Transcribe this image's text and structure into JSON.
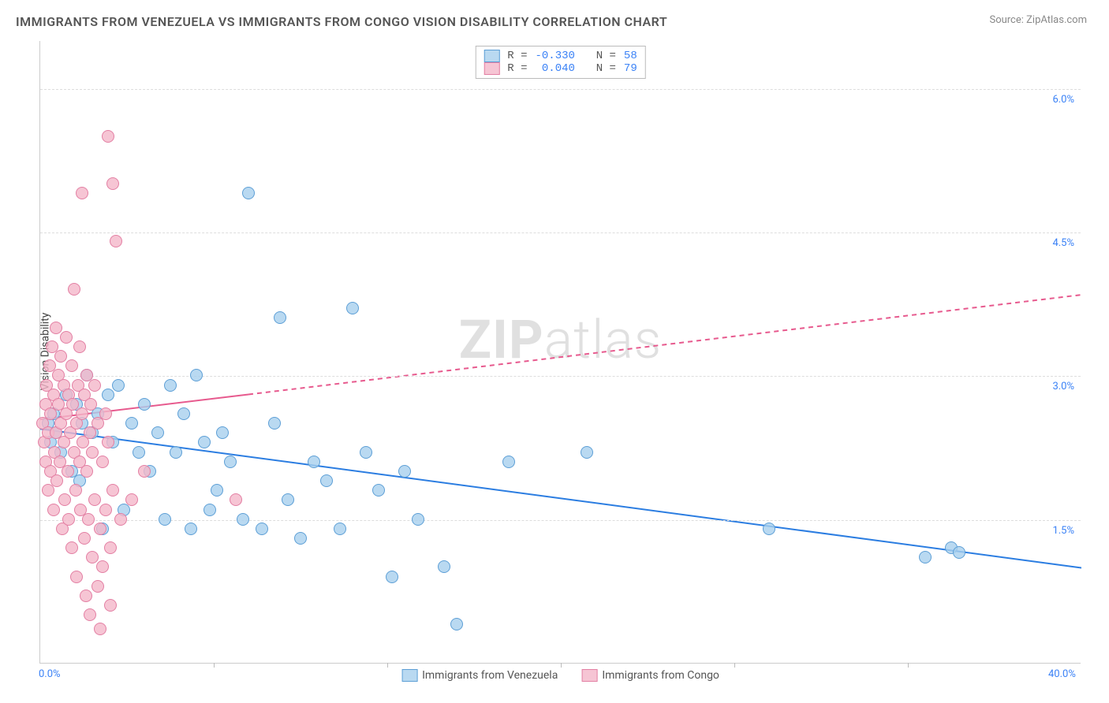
{
  "chart": {
    "type": "scatter",
    "title": "IMMIGRANTS FROM VENEZUELA VS IMMIGRANTS FROM CONGO VISION DISABILITY CORRELATION CHART",
    "source": "Source: ZipAtlas.com",
    "ylabel": "Vision Disability",
    "watermark_bold": "ZIP",
    "watermark_rest": "atlas",
    "background_color": "#ffffff",
    "grid_color": "#dddddd",
    "axis_color": "#cccccc",
    "title_color": "#555555",
    "title_fontsize": 16,
    "label_fontsize": 14,
    "tick_fontsize": 13,
    "tick_color": "#3b82f6",
    "x_axis": {
      "min": 0.0,
      "max": 40.0,
      "ticks": [
        0.0,
        40.0
      ],
      "tick_labels": [
        "0.0%",
        "40.0%"
      ],
      "minor_tick_positions": [
        6.67,
        13.33,
        20.0,
        26.67,
        33.33
      ]
    },
    "y_axis": {
      "min": 0.0,
      "max": 6.5,
      "gridlines": [
        1.5,
        3.0,
        4.5,
        6.0
      ],
      "gridline_labels": [
        "1.5%",
        "3.0%",
        "4.5%",
        "6.0%"
      ]
    },
    "series": [
      {
        "name": "Immigrants from Venezuela",
        "fill": "#a8cfeecc",
        "stroke": "#5d9fd6",
        "marker_radius": 8,
        "R_label": "R =",
        "R": "-0.330",
        "N_label": "N =",
        "N": "58",
        "trend": {
          "color": "#2b7de1",
          "width": 2,
          "dash": "none",
          "y_at_x0": 2.45,
          "y_at_x40": 1.0,
          "solid_until_x": 40
        },
        "points": [
          [
            0.3,
            2.5
          ],
          [
            0.4,
            2.3
          ],
          [
            0.5,
            2.6
          ],
          [
            0.6,
            2.4
          ],
          [
            0.8,
            2.2
          ],
          [
            1.0,
            2.8
          ],
          [
            1.2,
            2.0
          ],
          [
            1.4,
            2.7
          ],
          [
            1.5,
            1.9
          ],
          [
            1.6,
            2.5
          ],
          [
            1.8,
            3.0
          ],
          [
            2.0,
            2.4
          ],
          [
            2.2,
            2.6
          ],
          [
            2.4,
            1.4
          ],
          [
            2.6,
            2.8
          ],
          [
            2.8,
            2.3
          ],
          [
            3.0,
            2.9
          ],
          [
            3.2,
            1.6
          ],
          [
            3.5,
            2.5
          ],
          [
            3.8,
            2.2
          ],
          [
            4.0,
            2.7
          ],
          [
            4.2,
            2.0
          ],
          [
            4.5,
            2.4
          ],
          [
            4.8,
            1.5
          ],
          [
            5.0,
            2.9
          ],
          [
            5.2,
            2.2
          ],
          [
            5.5,
            2.6
          ],
          [
            5.8,
            1.4
          ],
          [
            6.0,
            3.0
          ],
          [
            6.3,
            2.3
          ],
          [
            6.5,
            1.6
          ],
          [
            6.8,
            1.8
          ],
          [
            7.0,
            2.4
          ],
          [
            7.3,
            2.1
          ],
          [
            7.8,
            1.5
          ],
          [
            8.0,
            4.9
          ],
          [
            8.5,
            1.4
          ],
          [
            9.0,
            2.5
          ],
          [
            9.2,
            3.6
          ],
          [
            9.5,
            1.7
          ],
          [
            10.0,
            1.3
          ],
          [
            10.5,
            2.1
          ],
          [
            11.0,
            1.9
          ],
          [
            11.5,
            1.4
          ],
          [
            12.0,
            3.7
          ],
          [
            12.5,
            2.2
          ],
          [
            13.0,
            1.8
          ],
          [
            13.5,
            0.9
          ],
          [
            14.0,
            2.0
          ],
          [
            14.5,
            1.5
          ],
          [
            15.5,
            1.0
          ],
          [
            16.0,
            0.4
          ],
          [
            18.0,
            2.1
          ],
          [
            21.0,
            2.2
          ],
          [
            28.0,
            1.4
          ],
          [
            34.0,
            1.1
          ],
          [
            35.0,
            1.2
          ],
          [
            35.3,
            1.15
          ]
        ]
      },
      {
        "name": "Immigrants from Congo",
        "fill": "#f4b6c9cc",
        "stroke": "#e37fa3",
        "marker_radius": 8,
        "R_label": "R =",
        "R": " 0.040",
        "N_label": "N =",
        "N": "79",
        "trend": {
          "color": "#e75a8e",
          "width": 2,
          "dash": "6 5",
          "y_at_x0": 2.55,
          "y_at_x40": 3.85,
          "solid_until_x": 8
        },
        "points": [
          [
            0.1,
            2.5
          ],
          [
            0.15,
            2.3
          ],
          [
            0.2,
            2.7
          ],
          [
            0.2,
            2.1
          ],
          [
            0.25,
            2.9
          ],
          [
            0.3,
            2.4
          ],
          [
            0.3,
            1.8
          ],
          [
            0.35,
            3.1
          ],
          [
            0.4,
            2.6
          ],
          [
            0.4,
            2.0
          ],
          [
            0.45,
            3.3
          ],
          [
            0.5,
            2.8
          ],
          [
            0.5,
            1.6
          ],
          [
            0.55,
            2.2
          ],
          [
            0.6,
            3.5
          ],
          [
            0.6,
            2.4
          ],
          [
            0.65,
            1.9
          ],
          [
            0.7,
            2.7
          ],
          [
            0.7,
            3.0
          ],
          [
            0.75,
            2.1
          ],
          [
            0.8,
            2.5
          ],
          [
            0.8,
            3.2
          ],
          [
            0.85,
            1.4
          ],
          [
            0.9,
            2.9
          ],
          [
            0.9,
            2.3
          ],
          [
            0.95,
            1.7
          ],
          [
            1.0,
            2.6
          ],
          [
            1.0,
            3.4
          ],
          [
            1.05,
            2.0
          ],
          [
            1.1,
            2.8
          ],
          [
            1.1,
            1.5
          ],
          [
            1.15,
            2.4
          ],
          [
            1.2,
            3.1
          ],
          [
            1.2,
            1.2
          ],
          [
            1.25,
            2.7
          ],
          [
            1.3,
            2.2
          ],
          [
            1.3,
            3.9
          ],
          [
            1.35,
            1.8
          ],
          [
            1.4,
            2.5
          ],
          [
            1.4,
            0.9
          ],
          [
            1.45,
            2.9
          ],
          [
            1.5,
            2.1
          ],
          [
            1.5,
            3.3
          ],
          [
            1.55,
            1.6
          ],
          [
            1.6,
            2.6
          ],
          [
            1.6,
            4.9
          ],
          [
            1.65,
            2.3
          ],
          [
            1.7,
            1.3
          ],
          [
            1.7,
            2.8
          ],
          [
            1.75,
            0.7
          ],
          [
            1.8,
            2.0
          ],
          [
            1.8,
            3.0
          ],
          [
            1.85,
            1.5
          ],
          [
            1.9,
            2.4
          ],
          [
            1.9,
            0.5
          ],
          [
            1.95,
            2.7
          ],
          [
            2.0,
            1.1
          ],
          [
            2.0,
            2.2
          ],
          [
            2.1,
            1.7
          ],
          [
            2.1,
            2.9
          ],
          [
            2.2,
            0.8
          ],
          [
            2.2,
            2.5
          ],
          [
            2.3,
            1.4
          ],
          [
            2.3,
            0.35
          ],
          [
            2.4,
            2.1
          ],
          [
            2.4,
            1.0
          ],
          [
            2.5,
            2.6
          ],
          [
            2.5,
            1.6
          ],
          [
            2.6,
            5.5
          ],
          [
            2.6,
            2.3
          ],
          [
            2.7,
            1.2
          ],
          [
            2.7,
            0.6
          ],
          [
            2.8,
            5.0
          ],
          [
            2.8,
            1.8
          ],
          [
            2.9,
            4.4
          ],
          [
            3.1,
            1.5
          ],
          [
            3.5,
            1.7
          ],
          [
            4.0,
            2.0
          ],
          [
            7.5,
            1.7
          ]
        ]
      }
    ]
  }
}
